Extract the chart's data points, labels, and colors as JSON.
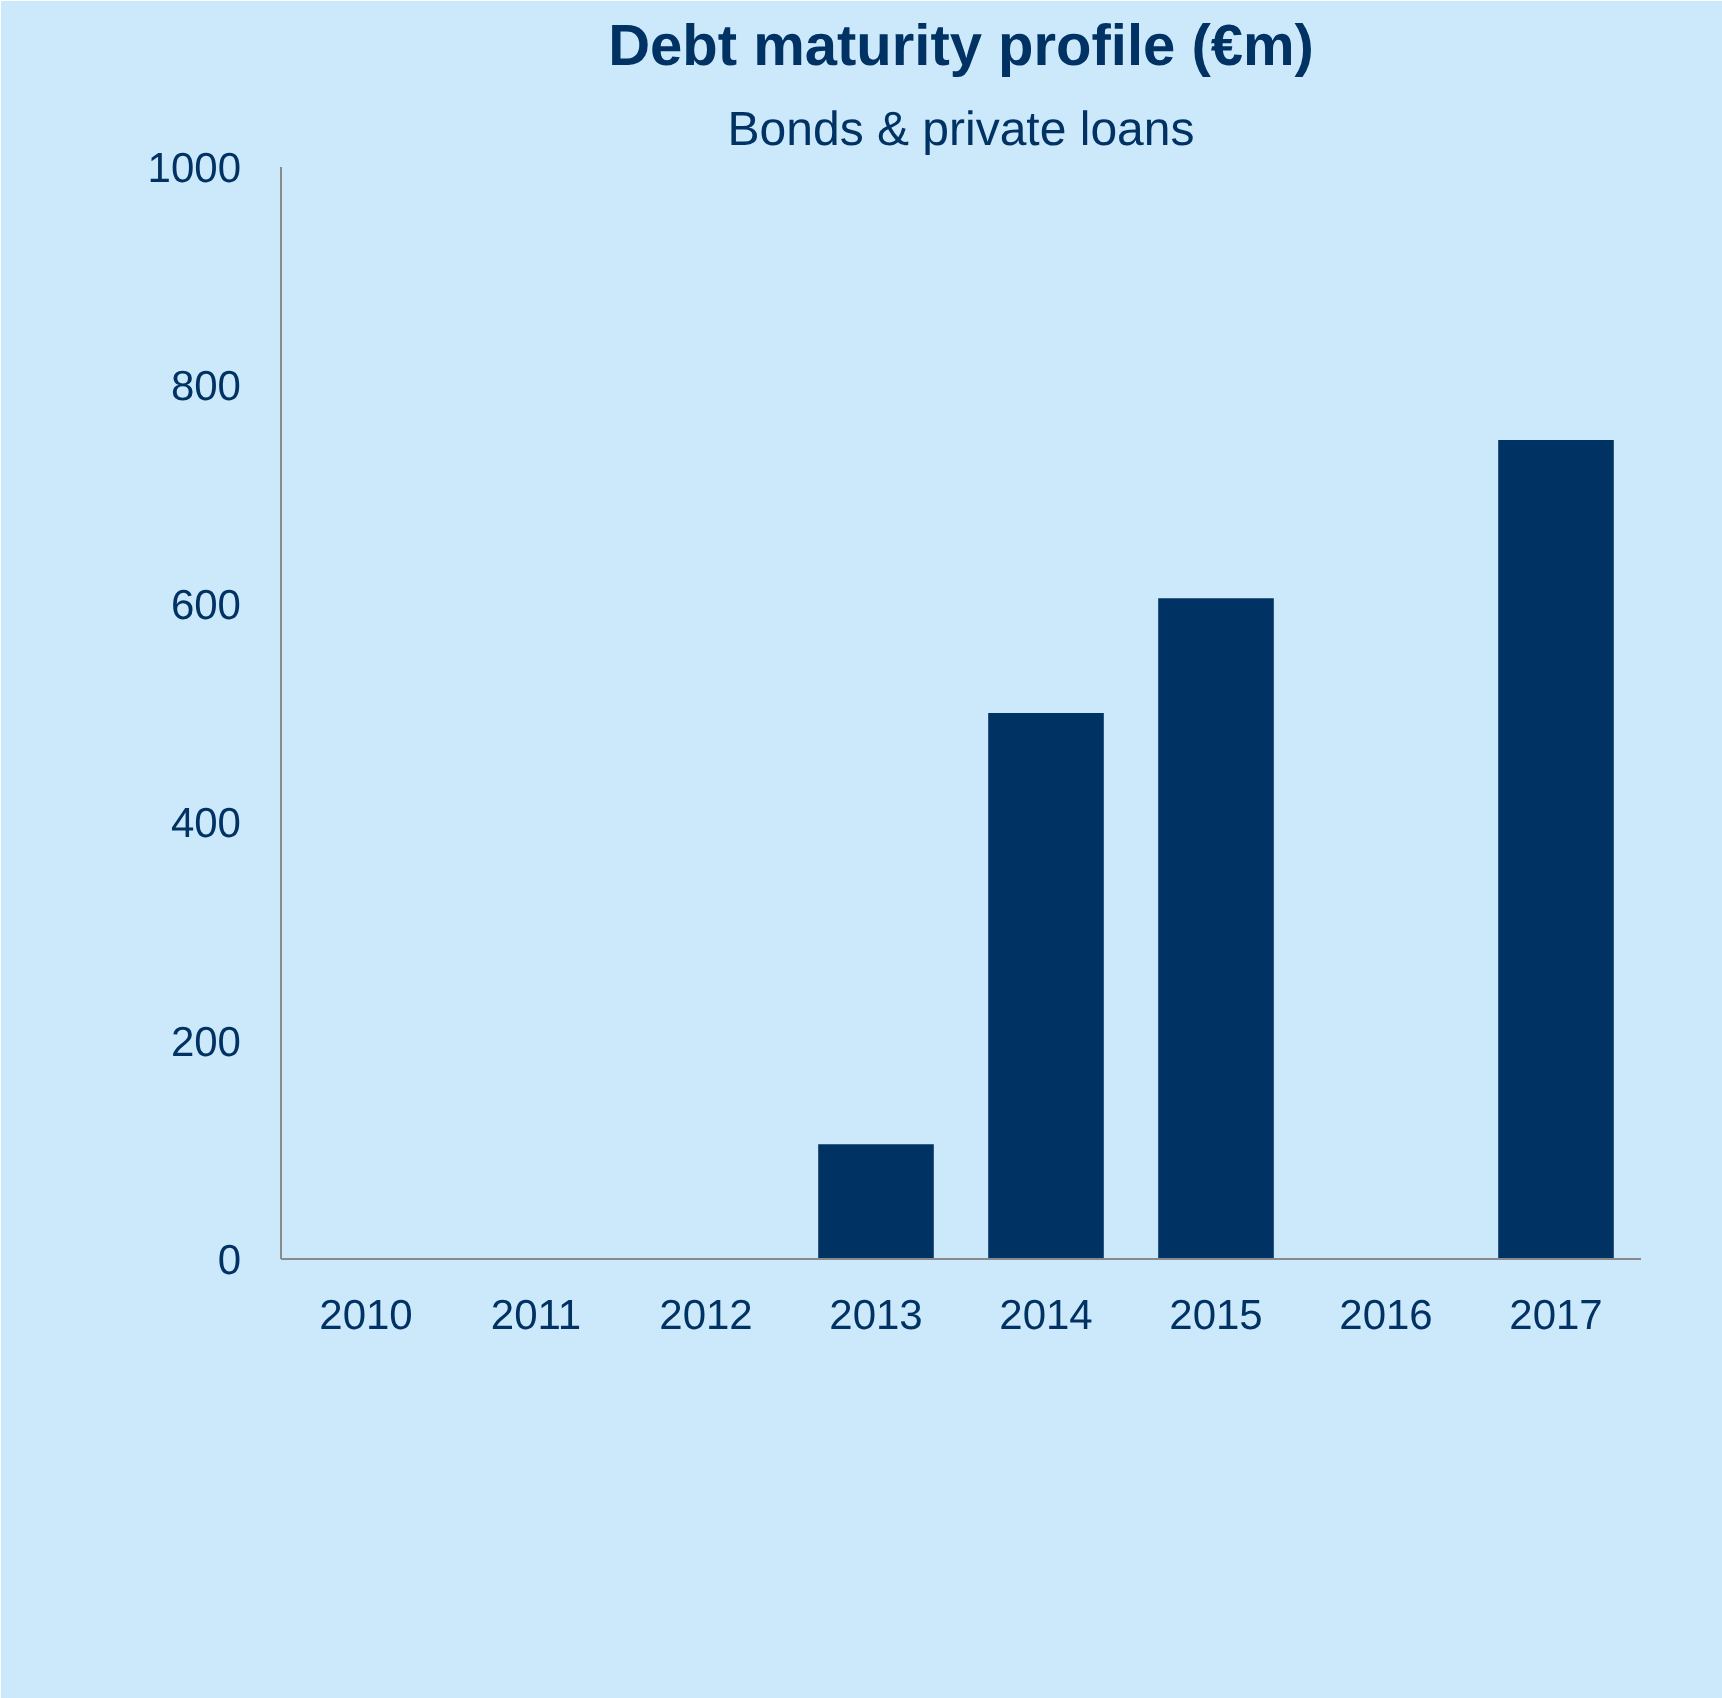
{
  "chart_data": {
    "type": "bar",
    "title": "Debt maturity profile (€m)",
    "subtitle": "Bonds & private loans",
    "categories": [
      "2010",
      "2011",
      "2012",
      "2013",
      "2014",
      "2015",
      "2016",
      "2017"
    ],
    "values": [
      0,
      0,
      0,
      105,
      500,
      605,
      0,
      750
    ],
    "color": "#003263",
    "ylim": [
      0,
      1000
    ],
    "yticks": [
      0,
      200,
      400,
      600,
      800,
      1000
    ],
    "grid": false
  }
}
